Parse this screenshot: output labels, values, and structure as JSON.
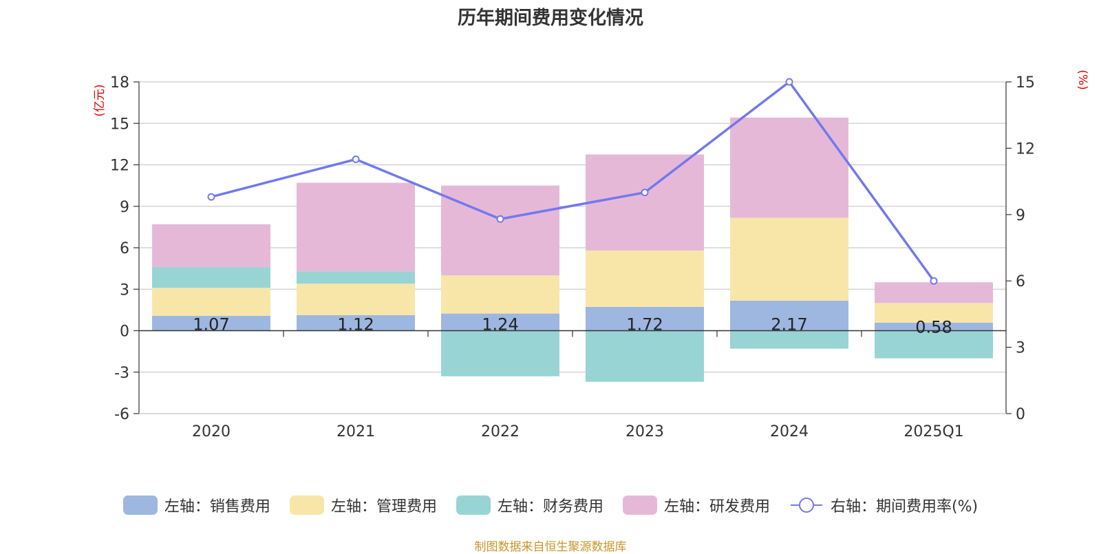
{
  "title": "历年期间费用变化情况",
  "source_note": "制图数据来自恒生聚源数据库",
  "left_unit": "(亿元)",
  "right_unit": "(%)",
  "colors": {
    "sales": "#9db7e0",
    "admin": "#f8e6a8",
    "finance": "#98d4d4",
    "rnd": "#e6b8d8",
    "rate": "#7179ee",
    "unit": "#e00000"
  },
  "legend": {
    "sales": "左轴：销售费用",
    "admin": "左轴：管理费用",
    "finance": "左轴：财务费用",
    "rnd": "左轴：研发费用",
    "rate": "右轴：期间费用率(%)"
  },
  "chart_data": {
    "type": "bar",
    "stacked": true,
    "categories": [
      "2020",
      "2021",
      "2022",
      "2023",
      "2024",
      "2025Q1"
    ],
    "series": [
      {
        "name": "左轴：销售费用",
        "key": "sales",
        "axis": "left",
        "values": [
          1.07,
          1.12,
          1.24,
          1.72,
          2.17,
          0.58
        ]
      },
      {
        "name": "左轴：管理费用",
        "key": "admin",
        "axis": "left",
        "values": [
          2.03,
          2.28,
          2.76,
          4.08,
          6.0,
          1.42
        ]
      },
      {
        "name": "左轴：财务费用",
        "key": "finance",
        "axis": "left",
        "values": [
          1.5,
          0.9,
          -3.3,
          -3.7,
          -1.3,
          -2.0
        ]
      },
      {
        "name": "左轴：研发费用",
        "key": "rnd",
        "axis": "left",
        "values": [
          3.1,
          6.4,
          6.5,
          6.95,
          7.25,
          1.5
        ]
      },
      {
        "name": "右轴：期间费用率(%)",
        "key": "rate",
        "type": "line",
        "axis": "right",
        "values": [
          9.8,
          11.5,
          8.8,
          10.0,
          15.0,
          6.0
        ]
      }
    ],
    "data_labels": [
      "1.07",
      "1.12",
      "1.24",
      "1.72",
      "2.17",
      "0.58"
    ],
    "left_axis": {
      "min": -6,
      "max": 18,
      "ticks": [
        -6,
        -3,
        0,
        3,
        6,
        9,
        12,
        15,
        18
      ]
    },
    "right_axis": {
      "min": 0,
      "max": 15,
      "ticks": [
        0,
        3,
        6,
        9,
        12,
        15
      ]
    },
    "grid": true,
    "legend_position": "bottom"
  }
}
